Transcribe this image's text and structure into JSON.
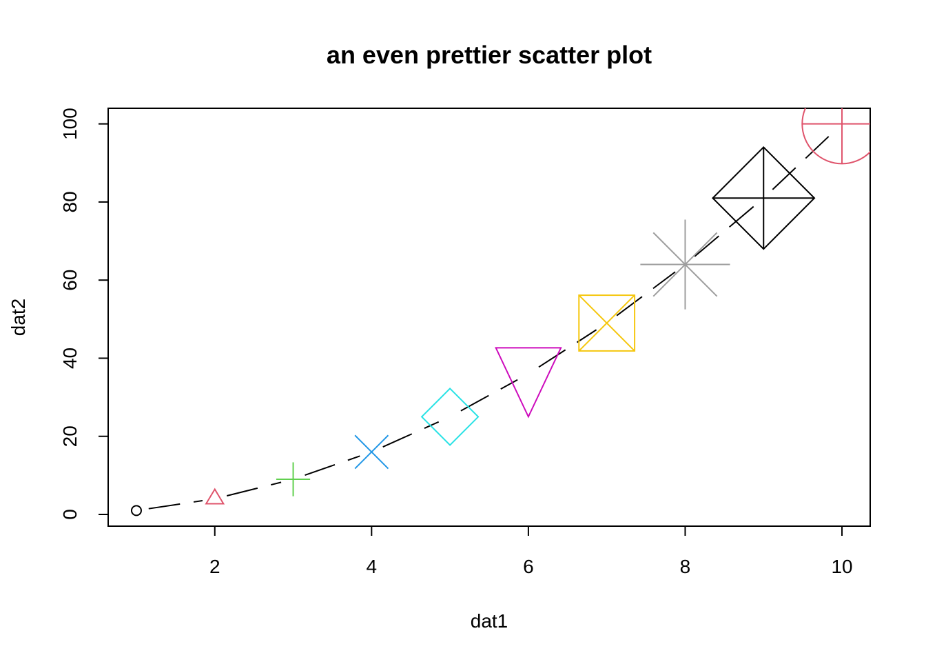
{
  "chart_data": {
    "type": "scatter",
    "title": "an even prettier scatter plot",
    "xlabel": "dat1",
    "ylabel": "dat2",
    "xlim": [
      0.64,
      10.36
    ],
    "ylim": [
      -3.0,
      104.0
    ],
    "x_ticks": [
      2,
      4,
      6,
      8,
      10
    ],
    "y_ticks": [
      0,
      20,
      40,
      60,
      80,
      100
    ],
    "grid": false,
    "legend": "none",
    "line": {
      "type": "dashed",
      "color": "#000000"
    },
    "points": [
      {
        "x": 1,
        "y": 1,
        "marker": "circle",
        "color": "#000000",
        "size": 1
      },
      {
        "x": 2,
        "y": 4,
        "marker": "triangle-up",
        "color": "#DF536B",
        "size": 2
      },
      {
        "x": 3,
        "y": 9,
        "marker": "plus",
        "color": "#61D04F",
        "size": 3
      },
      {
        "x": 4,
        "y": 16,
        "marker": "x",
        "color": "#2297E6",
        "size": 4
      },
      {
        "x": 5,
        "y": 25,
        "marker": "diamond",
        "color": "#28E2E5",
        "size": 5
      },
      {
        "x": 6,
        "y": 36,
        "marker": "triangle-down",
        "color": "#CD0BBC",
        "size": 6
      },
      {
        "x": 7,
        "y": 49,
        "marker": "square-x",
        "color": "#F5C710",
        "size": 7
      },
      {
        "x": 8,
        "y": 64,
        "marker": "asterisk",
        "color": "#9E9E9E",
        "size": 8
      },
      {
        "x": 9,
        "y": 81,
        "marker": "diamond-plus",
        "color": "#000000",
        "size": 9
      },
      {
        "x": 10,
        "y": 100,
        "marker": "circle-plus",
        "color": "#DF536B",
        "size": 10
      }
    ]
  }
}
